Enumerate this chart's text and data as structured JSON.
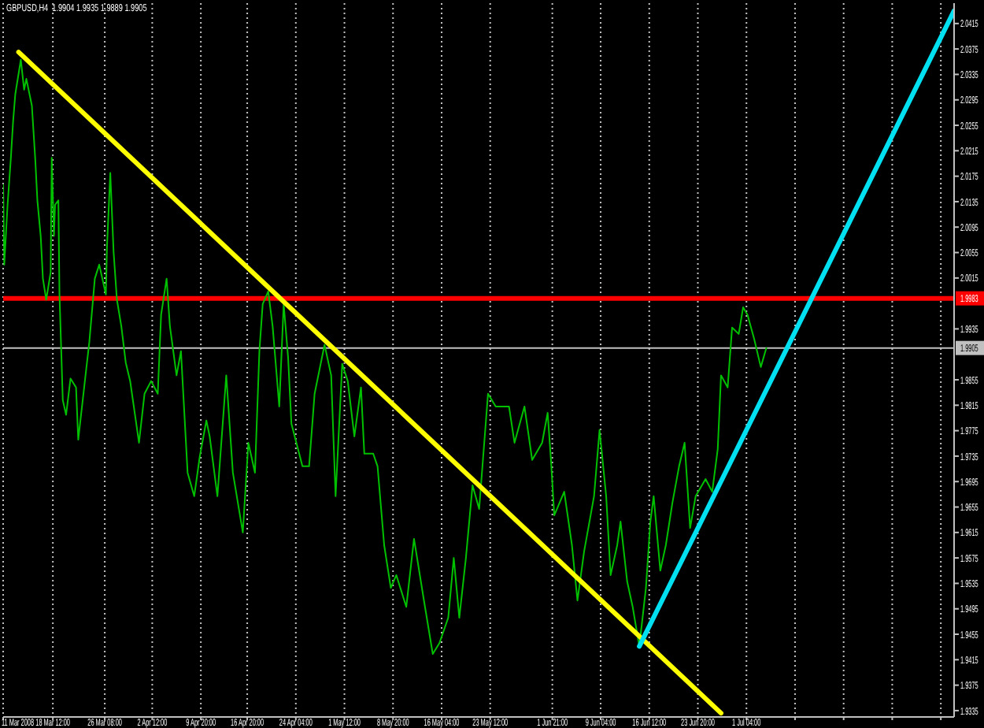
{
  "chart_data": {
    "type": "line",
    "title": "GBPUSD,H4  1.9904 1.9935 1.9889 1.9905",
    "x": [
      "2008-03-11T00:00",
      "2008-03-11T04:00",
      "2008-03-11T16:00",
      "2008-03-12T04:00",
      "2008-03-12T12:00",
      "2008-03-12T20:00",
      "2008-03-13T16:00",
      "2008-03-14T04:00",
      "2008-03-14T12:00",
      "2008-03-15T08:00",
      "2008-03-15T20:00",
      "2008-03-16T04:00",
      "2008-03-16T16:00",
      "2008-03-17T00:00",
      "2008-03-17T12:00",
      "2008-03-18T04:00",
      "2008-03-18T08:00",
      "2008-03-18T16:00",
      "2008-03-18T20:00",
      "2008-03-19T08:00",
      "2008-03-19T12:00",
      "2008-03-20T00:00",
      "2008-03-20T12:00",
      "2008-03-21T04:00",
      "2008-03-22T00:00",
      "2008-03-22T08:00",
      "2008-03-23T08:00",
      "2008-03-24T00:00",
      "2008-03-24T20:00",
      "2008-03-25T12:00",
      "2008-03-26T12:00",
      "2008-03-26T16:00",
      "2008-03-27T04:00",
      "2008-03-27T16:00",
      "2008-03-28T04:00",
      "2008-03-28T20:00",
      "2008-03-29T12:00",
      "2008-03-30T04:00",
      "2008-03-31T12:00",
      "2008-04-01T08:00",
      "2008-04-02T08:00",
      "2008-04-03T08:00",
      "2008-04-03T20:00",
      "2008-04-04T16:00",
      "2008-04-05T04:00",
      "2008-04-06T04:00",
      "2008-04-06T20:00",
      "2008-04-07T20:00",
      "2008-04-08T20:00",
      "2008-04-09T16:00",
      "2008-04-10T16:00",
      "2008-04-11T04:00",
      "2008-04-12T08:00",
      "2008-04-13T16:00",
      "2008-04-14T16:00",
      "2008-04-16T04:00",
      "2008-04-17T00:00",
      "2008-04-18T00:00",
      "2008-04-18T16:00",
      "2008-04-19T04:00",
      "2008-04-20T00:00",
      "2008-04-20T16:00",
      "2008-04-21T16:00",
      "2008-04-22T08:00",
      "2008-04-23T00:00",
      "2008-04-23T12:00",
      "2008-04-25T04:00",
      "2008-04-26T04:00",
      "2008-04-27T00:00",
      "2008-04-28T12:00",
      "2008-04-29T12:00",
      "2008-04-30T04:00",
      "2008-05-01T04:00",
      "2008-05-02T00:00",
      "2008-05-03T00:00",
      "2008-05-04T00:00",
      "2008-05-04T12:00",
      "2008-05-05T20:00",
      "2008-05-06T12:00",
      "2008-05-07T12:00",
      "2008-05-08T12:00",
      "2008-05-09T08:00",
      "2008-05-10T20:00",
      "2008-05-12T00:00",
      "2008-05-13T12:00",
      "2008-05-14T20:00",
      "2008-05-15T20:00",
      "2008-05-17T04:00",
      "2008-05-18T00:00",
      "2008-05-18T20:00",
      "2008-05-19T20:00",
      "2008-05-20T20:00",
      "2008-05-21T20:00",
      "2008-05-23T04:00",
      "2008-05-24T08:00",
      "2008-05-26T08:00",
      "2008-05-27T04:00",
      "2008-05-28T16:00",
      "2008-05-29T20:00",
      "2008-05-31T08:00",
      "2008-06-01T04:00",
      "2008-06-01T16:00",
      "2008-06-02T04:00",
      "2008-06-03T16:00",
      "2008-06-04T20:00",
      "2008-06-05T16:00",
      "2008-06-06T16:00",
      "2008-06-08T04:00",
      "2008-06-09T00:00",
      "2008-06-10T00:00",
      "2008-06-10T16:00",
      "2008-06-11T16:00",
      "2008-06-12T04:00",
      "2008-06-13T04:00",
      "2008-06-14T00:00",
      "2008-06-15T00:00",
      "2008-06-16T00:00",
      "2008-06-16T16:00",
      "2008-06-17T04:00",
      "2008-06-18T04:00",
      "2008-06-19T00:00",
      "2008-06-20T00:00",
      "2008-06-21T00:00",
      "2008-06-21T20:00",
      "2008-06-22T16:00",
      "2008-06-23T12:00",
      "2008-06-25T00:00",
      "2008-06-26T00:00",
      "2008-06-26T20:00",
      "2008-06-27T08:00",
      "2008-06-28T08:00",
      "2008-06-29T00:00",
      "2008-06-30T00:00",
      "2008-06-30T16:00",
      "2008-07-01T08:00",
      "2008-07-02T08:00",
      "2008-07-03T08:00",
      "2008-07-04T04:00"
    ],
    "series": [
      {
        "color": "#00c000",
        "values": [
          2.0162,
          2.0036,
          2.013,
          2.0204,
          2.0261,
          2.0304,
          2.0358,
          2.0311,
          2.0328,
          2.0286,
          2.0204,
          2.0137,
          2.0081,
          2.0014,
          1.9981,
          2.0024,
          2.0204,
          2.0081,
          2.013,
          2.0137,
          1.9989,
          1.9823,
          1.98,
          1.9857,
          1.9843,
          1.9761,
          1.9853,
          1.9914,
          2.0014,
          2.0036,
          1.9989,
          2.0063,
          2.018,
          2.0056,
          1.9981,
          1.9939,
          1.9882,
          1.9853,
          1.9756,
          1.9833,
          1.9853,
          1.9833,
          1.9957,
          2.0014,
          1.9939,
          1.9862,
          1.99,
          1.9709,
          1.9672,
          1.9734,
          1.9791,
          1.9766,
          1.9672,
          1.9862,
          1.9709,
          1.9615,
          1.9756,
          1.9709,
          1.99,
          1.9974,
          1.9994,
          1.9939,
          1.9813,
          1.9974,
          1.989,
          1.9786,
          1.9719,
          1.9719,
          1.9833,
          1.991,
          1.9862,
          1.9672,
          1.988,
          1.9853,
          1.9766,
          1.9843,
          1.9739,
          1.9739,
          1.9719,
          1.9595,
          1.9528,
          1.9548,
          1.9498,
          1.9605,
          1.9508,
          1.9424,
          1.9441,
          1.9481,
          1.9575,
          1.9481,
          1.9575,
          1.9689,
          1.9652,
          1.9833,
          1.9813,
          1.9813,
          1.9756,
          1.9813,
          1.9729,
          1.9756,
          1.9803,
          1.9729,
          1.9642,
          1.9679,
          1.9595,
          1.9508,
          1.9585,
          1.9672,
          1.9776,
          1.9672,
          1.9548,
          1.9595,
          1.9632,
          1.9538,
          1.9498,
          1.9436,
          1.9528,
          1.9632,
          1.9672,
          1.9555,
          1.9595,
          1.9662,
          1.9719,
          1.9756,
          1.9622,
          1.9672,
          1.9699,
          1.9679,
          1.9746,
          1.9862,
          1.9843,
          1.9937,
          1.9927,
          1.9969,
          1.9957,
          1.9919,
          1.9875,
          1.9905
        ]
      },
      {
        "type": "line",
        "color": "#ffff00",
        "x": [
          "2008-03-13T08:00",
          "2008-06-27T08:00"
        ],
        "values": [
          2.037,
          1.9331
        ]
      },
      {
        "type": "line",
        "color": "#00e0f0",
        "x": [
          "2008-06-15T00:00",
          "2008-08-01T12:00"
        ],
        "values": [
          1.9436,
          2.0435
        ]
      }
    ],
    "xlim": [
      "2008-03-11T00:00",
      "2008-08-01T12:00"
    ],
    "xticks": [
      {
        "value": "2008-03-11T00:00",
        "label": "11 Mar 2008"
      },
      {
        "value": "2008-03-18T12:00",
        "label": "18 Mar 12:00"
      },
      {
        "value": "2008-03-26T08:00",
        "label": "26 Mar 08:00"
      },
      {
        "value": "2008-04-02T12:00",
        "label": "2 Apr 12:00"
      },
      {
        "value": "2008-04-09T20:00",
        "label": "9 Apr 20:00"
      },
      {
        "value": "2008-04-16T20:00",
        "label": "16 Apr 20:00"
      },
      {
        "value": "2008-04-24T04:00",
        "label": "24 Apr 04:00"
      },
      {
        "value": "2008-05-01T12:00",
        "label": "1 May 12:00"
      },
      {
        "value": "2008-05-08T20:00",
        "label": "8 May 20:00"
      },
      {
        "value": "2008-05-16T04:00",
        "label": "16 May 04:00"
      },
      {
        "value": "2008-05-23T12:00",
        "label": "23 May 12:00"
      },
      {
        "value": "2008-06-01T21:00",
        "label": "1 Jun 21:00"
      },
      {
        "value": "2008-06-09T04:00",
        "label": "9 Jun 04:00"
      },
      {
        "value": "2008-06-16T12:00",
        "label": "16 Jun 12:00"
      },
      {
        "value": "2008-06-23T20:00",
        "label": "23 Jun 20:00"
      },
      {
        "value": "2008-07-01T04:00",
        "label": "1 Jul 04:00"
      },
      {
        "value": "2008-07-08T12:00",
        "label": null
      },
      {
        "value": "2008-07-15T20:00",
        "label": null
      },
      {
        "value": "2008-07-23T04:00",
        "label": null
      },
      {
        "value": "2008-07-30T12:00",
        "label": null
      }
    ],
    "ylim": [
      1.9325,
      2.0447
    ],
    "yticks": [
      2.0415,
      2.0375,
      2.0335,
      2.0295,
      2.0255,
      2.0215,
      2.0175,
      2.0135,
      2.0095,
      2.0055,
      2.0015,
      1.9935,
      1.9855,
      1.9815,
      1.9775,
      1.9735,
      1.9695,
      1.9655,
      1.9615,
      1.9575,
      1.9535,
      1.9495,
      1.9455,
      1.9415,
      1.9375,
      1.9335
    ],
    "ref_lines": [
      {
        "axis": "y",
        "value": 1.9983,
        "label": "1.9983",
        "color": "#ff0000"
      },
      {
        "axis": "y",
        "value": 1.9905,
        "label": "1.9905",
        "color": "#c0c0c0"
      }
    ],
    "grid": "x"
  }
}
